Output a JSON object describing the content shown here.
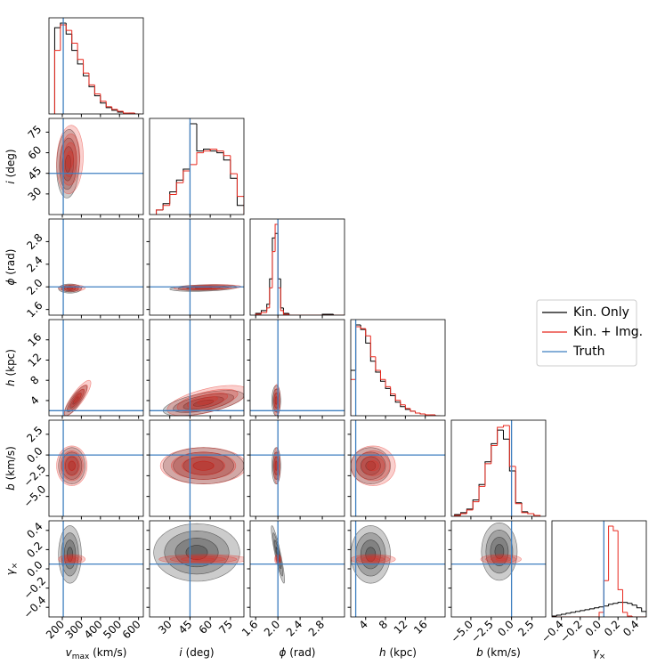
{
  "chart_data": {
    "type": "corner",
    "series": [
      {
        "name": "Kin. Only",
        "color": "#000000"
      },
      {
        "name": "Kin. + Img.",
        "color": "#e8281e"
      }
    ],
    "truth": {
      "name": "Truth",
      "color": "#3f7fc0"
    },
    "params": [
      {
        "sym": "v",
        "sub": "max",
        "unit": " (km/s)",
        "lim": [
          130,
          625
        ],
        "ticks": [
          200,
          300,
          400,
          500,
          600
        ],
        "truth": 205
      },
      {
        "sym": "i",
        "unit": " (deg)",
        "lim": [
          15,
          85
        ],
        "ticks": [
          30,
          45,
          60,
          75
        ],
        "truth": 45
      },
      {
        "sym": "ϕ",
        "unit": " (rad)",
        "lim": [
          1.5,
          3.2
        ],
        "ticks": [
          1.6,
          {
            "value": 2,
            "label": "2.0"
          },
          2.4,
          2.8
        ],
        "truth": 2
      },
      {
        "sym": "h",
        "unit": " (kpc)",
        "lim": [
          1,
          20
        ],
        "ticks": [
          4,
          8,
          12,
          16
        ],
        "truth": 2
      },
      {
        "sym": "b",
        "unit": " (km/s)",
        "lim": [
          -7.4,
          4.2
        ],
        "ticks": [
          {
            "value": -5,
            "label": "−5.0"
          },
          {
            "value": -2.5,
            "label": "−2.5"
          },
          {
            "value": 0,
            "label": "0.0"
          },
          2.5
        ],
        "truth": 0
      },
      {
        "sym": "γ",
        "sub": "×",
        "unit": "",
        "lim": [
          -0.5,
          0.5
        ],
        "ticks": [
          {
            "value": -0.4,
            "label": "−0.4"
          },
          {
            "value": -0.2,
            "label": "−0.2"
          },
          {
            "value": 0,
            "label": "0.0"
          },
          0.2,
          0.4
        ],
        "truth": 0.05
      }
    ],
    "hists": [
      {
        "bins": [
          160,
          190,
          220,
          250,
          280,
          310,
          340,
          370,
          400,
          430,
          460,
          490,
          520,
          550,
          580,
          610
        ],
        "series": [
          [
            95,
            100,
            88,
            70,
            55,
            42,
            30,
            20,
            12,
            7,
            4,
            2,
            1,
            1,
            0
          ],
          [
            70,
            98,
            92,
            78,
            60,
            45,
            32,
            22,
            14,
            8,
            5,
            3,
            1,
            1,
            0
          ]
        ]
      },
      {
        "bins": [
          20,
          25,
          30,
          35,
          40,
          45,
          50,
          55,
          60,
          65,
          70,
          75,
          80,
          85
        ],
        "series": [
          [
            5,
            12,
            25,
            38,
            50,
            100,
            70,
            72,
            70,
            68,
            60,
            40,
            10
          ],
          [
            5,
            10,
            22,
            35,
            48,
            55,
            68,
            70,
            72,
            70,
            65,
            45,
            20
          ]
        ]
      },
      {
        "bins": [
          1.6,
          1.7,
          1.8,
          1.85,
          1.9,
          1.95,
          2.0,
          2.05,
          2.1,
          2.2,
          2.4,
          2.8,
          3.0,
          3.2
        ],
        "series": [
          [
            2,
            5,
            12,
            40,
            85,
            90,
            40,
            8,
            2,
            0,
            0,
            1,
            0
          ],
          [
            1,
            3,
            8,
            30,
            70,
            100,
            30,
            5,
            1,
            0,
            0,
            0,
            0
          ]
        ]
      },
      {
        "bins": [
          1,
          2,
          3,
          4,
          5,
          6,
          7,
          8,
          9,
          10,
          11,
          12,
          13,
          14,
          15,
          16,
          17,
          18,
          19
        ],
        "series": [
          [
            50,
            100,
            95,
            80,
            60,
            48,
            38,
            30,
            22,
            15,
            10,
            7,
            5,
            3,
            2,
            1,
            1,
            0
          ],
          [
            40,
            98,
            96,
            88,
            65,
            50,
            40,
            32,
            24,
            17,
            12,
            8,
            5,
            3,
            2,
            1,
            1,
            0
          ]
        ]
      },
      {
        "bins": [
          -7,
          -6.25,
          -5.5,
          -4.75,
          -4,
          -3.25,
          -2.5,
          -1.75,
          -1,
          -0.25,
          0.5,
          1.25,
          2,
          2.75,
          3.5
        ],
        "series": [
          [
            2,
            4,
            8,
            18,
            35,
            60,
            80,
            95,
            85,
            50,
            15,
            5,
            3,
            1
          ],
          [
            1,
            3,
            7,
            16,
            33,
            58,
            78,
            98,
            100,
            55,
            14,
            4,
            3,
            1
          ]
        ]
      },
      {
        "bins": [
          -0.5,
          -0.45,
          -0.4,
          -0.35,
          -0.3,
          -0.25,
          -0.2,
          -0.15,
          -0.1,
          -0.05,
          0,
          0.05,
          0.1,
          0.15,
          0.2,
          0.25,
          0.3,
          0.35,
          0.4,
          0.45,
          0.5
        ],
        "series": [
          [
            1,
            2,
            3,
            4,
            5,
            6,
            7,
            8,
            9,
            10,
            11,
            12,
            14,
            15,
            16,
            16,
            15,
            13,
            10,
            6
          ],
          [
            0,
            0,
            0,
            0,
            0,
            0,
            0,
            0,
            0,
            0,
            5,
            40,
            100,
            95,
            30,
            5,
            1,
            0,
            0,
            0
          ]
        ]
      }
    ],
    "pairs": [
      {
        "x": 0,
        "y": 1,
        "series": [
          [
            230,
            52,
            60,
            25,
            0.1
          ],
          [
            240,
            55,
            70,
            25,
            0.1
          ]
        ]
      },
      {
        "x": 0,
        "y": 2,
        "series": [
          [
            240,
            1.97,
            60,
            0.08,
            0
          ],
          [
            250,
            1.98,
            70,
            0.06,
            0
          ]
        ]
      },
      {
        "x": 1,
        "y": 2,
        "series": [
          [
            55,
            1.98,
            25,
            0.06,
            0.3
          ],
          [
            58,
            1.99,
            25,
            0.05,
            0.3
          ]
        ]
      },
      {
        "x": 0,
        "y": 3,
        "series": [
          [
            270,
            4,
            60,
            3,
            0.85
          ],
          [
            280,
            4.5,
            70,
            3.5,
            0.85
          ]
        ]
      },
      {
        "x": 1,
        "y": 3,
        "series": [
          [
            55,
            3.5,
            30,
            2.5,
            0.6
          ],
          [
            58,
            4,
            30,
            3,
            0.6
          ]
        ]
      },
      {
        "x": 2,
        "y": 3,
        "series": [
          [
            1.97,
            4,
            0.08,
            3,
            0
          ],
          [
            1.98,
            4,
            0.06,
            3.2,
            0
          ]
        ]
      },
      {
        "x": 0,
        "y": 4,
        "series": [
          [
            250,
            -1.3,
            70,
            2.2,
            0
          ],
          [
            250,
            -1.3,
            80,
            2.4,
            0
          ]
        ]
      },
      {
        "x": 1,
        "y": 4,
        "series": [
          [
            55,
            -1.3,
            30,
            2.2,
            0
          ],
          [
            55,
            -1.3,
            32,
            2.2,
            0
          ]
        ]
      },
      {
        "x": 2,
        "y": 4,
        "series": [
          [
            1.97,
            -1.3,
            0.08,
            2.2,
            0
          ],
          [
            1.98,
            -1.3,
            0.06,
            2.2,
            0
          ]
        ]
      },
      {
        "x": 3,
        "y": 4,
        "series": [
          [
            5,
            -1.3,
            4,
            2.2,
            0
          ],
          [
            5.5,
            -1.3,
            4.5,
            2.4,
            0
          ]
        ]
      },
      {
        "x": 0,
        "y": 5,
        "series": [
          [
            240,
            0.15,
            60,
            0.3,
            0
          ],
          [
            250,
            0.1,
            70,
            0.05,
            0
          ]
        ]
      },
      {
        "x": 1,
        "y": 5,
        "series": [
          [
            50,
            0.17,
            32,
            0.3,
            0
          ],
          [
            55,
            0.1,
            33,
            0.05,
            0
          ]
        ]
      },
      {
        "x": 2,
        "y": 5,
        "series": [
          [
            2.0,
            0.15,
            0.12,
            0.3,
            -0.9
          ],
          [
            2.0,
            0.1,
            0.06,
            0.05,
            0
          ]
        ]
      },
      {
        "x": 3,
        "y": 5,
        "series": [
          [
            5,
            0.15,
            4,
            0.3,
            0
          ],
          [
            5.5,
            0.1,
            4.5,
            0.05,
            0
          ]
        ]
      },
      {
        "x": 4,
        "y": 5,
        "series": [
          [
            -1.5,
            0.18,
            2.2,
            0.3,
            0
          ],
          [
            -1.3,
            0.1,
            2.5,
            0.05,
            0
          ]
        ]
      }
    ]
  }
}
